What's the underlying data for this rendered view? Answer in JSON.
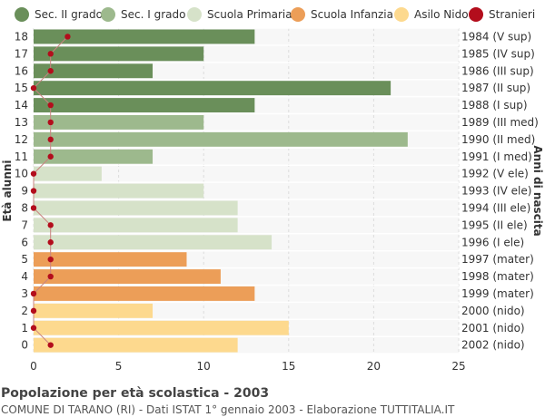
{
  "legend": [
    {
      "label": "Sec. II grado",
      "color": "#6a8f5a"
    },
    {
      "label": "Sec. I grado",
      "color": "#9db98d"
    },
    {
      "label": "Scuola Primaria",
      "color": "#d6e2c9"
    },
    {
      "label": "Scuola Infanzia",
      "color": "#ec9e58"
    },
    {
      "label": "Asilo Nido",
      "color": "#fdd98e"
    },
    {
      "label": "Stranieri",
      "color": "#b30d1c"
    }
  ],
  "footer": {
    "title": "Popolazione per età scolastica - 2003",
    "subtitle": "COMUNE DI TARANO (RI) - Dati ISTAT 1° gennaio 2003 - Elaborazione TUTTITALIA.IT"
  },
  "chart_data": {
    "type": "bar",
    "orientation": "horizontal",
    "ylabel": "Età alunni",
    "ylabel_right": "Anni di nascita",
    "xlim": [
      0,
      25
    ],
    "xticks": [
      0,
      5,
      10,
      15,
      20,
      25
    ],
    "grid": true,
    "legend_position": "top",
    "categories": [
      "18",
      "17",
      "16",
      "15",
      "14",
      "13",
      "12",
      "11",
      "10",
      "9",
      "8",
      "7",
      "6",
      "5",
      "4",
      "3",
      "2",
      "1",
      "0"
    ],
    "birth_years": [
      "1984 (V sup)",
      "1985 (IV sup)",
      "1986 (III sup)",
      "1987 (II sup)",
      "1988 (I sup)",
      "1989 (III med)",
      "1990 (II med)",
      "1991 (I med)",
      "1992 (V ele)",
      "1993 (IV ele)",
      "1994 (III ele)",
      "1995 (II ele)",
      "1996 (I ele)",
      "1997 (mater)",
      "1998 (mater)",
      "1999 (mater)",
      "2000 (nido)",
      "2001 (nido)",
      "2002 (nido)"
    ],
    "values": [
      13,
      10,
      7,
      21,
      13,
      10,
      22,
      7,
      4,
      10,
      12,
      12,
      14,
      9,
      11,
      13,
      7,
      15,
      12
    ],
    "groups": [
      "Sec. II grado",
      "Sec. II grado",
      "Sec. II grado",
      "Sec. II grado",
      "Sec. II grado",
      "Sec. I grado",
      "Sec. I grado",
      "Sec. I grado",
      "Scuola Primaria",
      "Scuola Primaria",
      "Scuola Primaria",
      "Scuola Primaria",
      "Scuola Primaria",
      "Scuola Infanzia",
      "Scuola Infanzia",
      "Scuola Infanzia",
      "Asilo Nido",
      "Asilo Nido",
      "Asilo Nido"
    ],
    "series": [
      {
        "name": "Stranieri",
        "values": [
          2,
          1,
          1,
          0,
          1,
          1,
          1,
          1,
          0,
          0,
          0,
          1,
          1,
          1,
          1,
          0,
          0,
          0,
          1
        ]
      }
    ]
  }
}
